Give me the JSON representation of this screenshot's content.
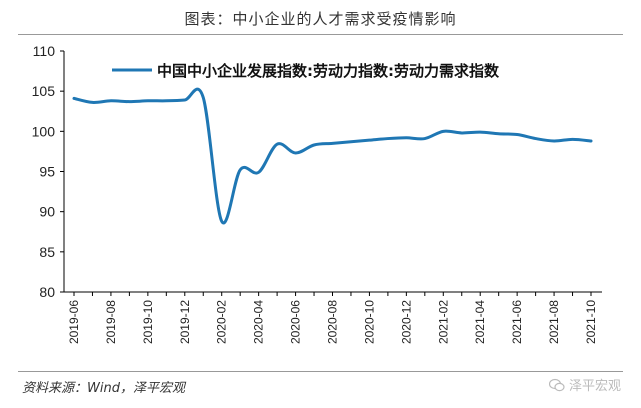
{
  "header": {
    "title": "图表：中小企业的人才需求受疫情影响"
  },
  "footer": {
    "source": "资料来源：Wind，泽平宏观",
    "watermark": "泽平宏观"
  },
  "colors": {
    "series": "#1f77b4",
    "axis": "#000000",
    "rule": "#999999"
  },
  "chart_data": {
    "type": "line",
    "title": "",
    "xlabel": "",
    "ylabel": "",
    "ylim": [
      80,
      110
    ],
    "yticks": [
      80,
      85,
      90,
      95,
      100,
      105,
      110
    ],
    "grid": false,
    "legend_position": "top-right",
    "x": [
      "2019-06",
      "2019-07",
      "2019-08",
      "2019-09",
      "2019-10",
      "2019-11",
      "2019-12",
      "2020-01",
      "2020-02",
      "2020-03",
      "2020-04",
      "2020-05",
      "2020-06",
      "2020-07",
      "2020-08",
      "2020-09",
      "2020-10",
      "2020-11",
      "2020-12",
      "2021-01",
      "2021-02",
      "2021-03",
      "2021-04",
      "2021-05",
      "2021-06",
      "2021-07",
      "2021-08",
      "2021-09",
      "2021-10"
    ],
    "xtick_labels": [
      "2019-06",
      "2019-08",
      "2019-10",
      "2019-12",
      "2020-02",
      "2020-04",
      "2020-06",
      "2020-08",
      "2020-10",
      "2020-12",
      "2021-02",
      "2021-04",
      "2021-06",
      "2021-08",
      "2021-10"
    ],
    "series": [
      {
        "name": "中国中小企业发展指数:劳动力指数:劳动力需求指数",
        "color": "#1f77b4",
        "values": [
          104.1,
          103.6,
          103.8,
          103.7,
          103.8,
          103.8,
          103.9,
          104.2,
          88.8,
          95.2,
          94.9,
          98.4,
          97.3,
          98.3,
          98.5,
          98.7,
          98.9,
          99.1,
          99.2,
          99.1,
          100.0,
          99.8,
          99.9,
          99.7,
          99.6,
          99.1,
          98.8,
          99.0,
          98.8
        ]
      }
    ]
  }
}
